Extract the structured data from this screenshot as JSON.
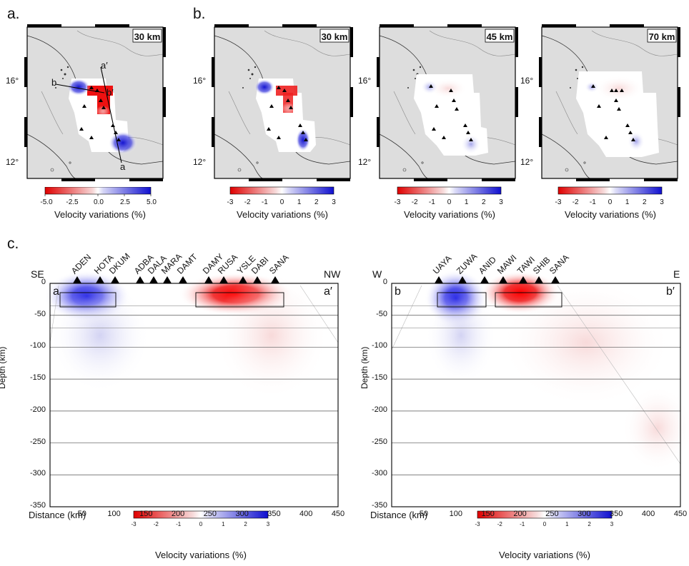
{
  "figure": {
    "panel_a": {
      "letter": "a.",
      "depth_label": "30 km",
      "lat_labels": [
        "16°",
        "12°"
      ],
      "profile_labels": [
        "a′",
        "b",
        "b′",
        "a"
      ],
      "colorbar": {
        "ticks": [
          "-5.0",
          "-2.5",
          "0.0",
          "2.5",
          "5.0"
        ],
        "label": "Velocity variations (%)"
      }
    },
    "panel_b": {
      "letter": "b.",
      "maps": [
        {
          "depth_label": "30 km",
          "lat_labels": [
            "16°",
            "12°"
          ]
        },
        {
          "depth_label": "45 km",
          "lat_labels": [
            "16°",
            "12°"
          ]
        },
        {
          "depth_label": "70 km",
          "lat_labels": [
            "16°",
            "12°"
          ]
        }
      ],
      "colorbar": {
        "ticks": [
          "-3",
          "-2",
          "-1",
          "0",
          "1",
          "2",
          "3"
        ],
        "label": "Velocity variations (%)"
      }
    },
    "panel_c": {
      "letter": "c.",
      "sections": [
        {
          "end_left": "SE",
          "end_right": "NW",
          "corner_left": "a",
          "corner_right": "a′",
          "stations": [
            "ADEN",
            "HOTA",
            "DKUM",
            "ADBA",
            "DALA",
            "MARA",
            "DAMT",
            "DAMY",
            "RUSA",
            "YSLE",
            "DABI",
            "SANA"
          ],
          "y_ticks": [
            "0",
            "-50",
            "-100",
            "-150",
            "-200",
            "-250",
            "-300",
            "-350"
          ],
          "x_ticks": [
            "50",
            "100",
            "150",
            "200",
            "250",
            "300",
            "350",
            "400",
            "450"
          ],
          "ylabel": "Depth (km)",
          "xlabel": "Distance (km)"
        },
        {
          "end_left": "W",
          "end_right": "E",
          "corner_left": "b",
          "corner_right": "b′",
          "stations": [
            "UAYA",
            "ZUWA",
            "ANID",
            "MAWI",
            "TAWI",
            "SHIB",
            "SANA"
          ],
          "y_ticks": [
            "0",
            "-50",
            "-100",
            "-150",
            "-200",
            "-250",
            "-300",
            "-350"
          ],
          "x_ticks": [
            "50",
            "100",
            "150",
            "200",
            "250",
            "300",
            "350",
            "400",
            "450"
          ],
          "ylabel": "Depth (km)",
          "xlabel": "Distance (km)"
        }
      ],
      "colorbar": {
        "ticks": [
          "-3",
          "-2",
          "-1",
          "0",
          "1",
          "2",
          "3"
        ],
        "label": "Velocity variations (%)"
      }
    },
    "colors": {
      "slow": "#e00000",
      "fast": "#1010d0",
      "land": "#dddddd",
      "coast": "#333333"
    }
  }
}
